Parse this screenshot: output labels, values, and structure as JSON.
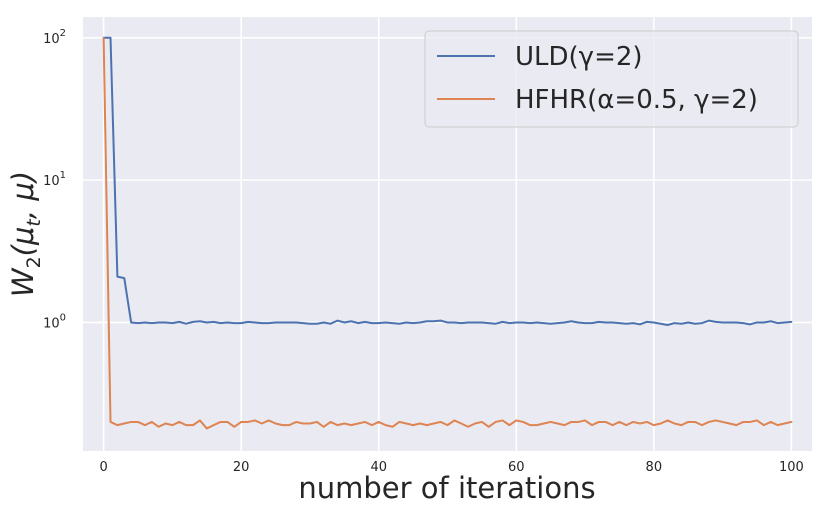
{
  "chart_data": {
    "type": "line",
    "xlabel": "number of iterations",
    "ylabel_main": "W",
    "ylabel_sub": "2",
    "ylabel_args": "(μ",
    "ylabel_args_sub": "t",
    "ylabel_tail": ", μ)",
    "yscale": "log",
    "xlim": [
      -3,
      103
    ],
    "ylim": [
      0.125,
      140
    ],
    "x_ticks": [
      0,
      20,
      40,
      60,
      80,
      100
    ],
    "x_tick_labels": [
      "0",
      "20",
      "40",
      "60",
      "80",
      "100"
    ],
    "y_ticks": [
      {
        "value": 100,
        "base": "10",
        "exp": "2"
      },
      {
        "value": 10,
        "base": "10",
        "exp": "1"
      },
      {
        "value": 1,
        "base": "10",
        "exp": "0"
      }
    ],
    "grid": true,
    "legend_position": "top-right",
    "series": [
      {
        "name": "ULD(γ=2)",
        "color": "#4c72b0",
        "x": [
          0,
          1,
          2,
          3,
          4,
          5,
          6,
          7,
          8,
          9,
          10,
          11,
          12,
          13,
          14,
          15,
          16,
          17,
          18,
          19,
          20,
          21,
          22,
          23,
          24,
          25,
          26,
          27,
          28,
          29,
          30,
          31,
          32,
          33,
          34,
          35,
          36,
          37,
          38,
          39,
          40,
          41,
          42,
          43,
          44,
          45,
          46,
          47,
          48,
          49,
          50,
          51,
          52,
          53,
          54,
          55,
          56,
          57,
          58,
          59,
          60,
          61,
          62,
          63,
          64,
          65,
          66,
          67,
          68,
          69,
          70,
          71,
          72,
          73,
          74,
          75,
          76,
          77,
          78,
          79,
          80,
          81,
          82,
          83,
          84,
          85,
          86,
          87,
          88,
          89,
          90,
          91,
          92,
          93,
          94,
          95,
          96,
          97,
          98,
          99,
          100
        ],
        "y": [
          100,
          100,
          2.1,
          2.05,
          1.0,
          0.99,
          1.0,
          0.99,
          1.0,
          1.0,
          0.99,
          1.01,
          0.98,
          1.01,
          1.02,
          1.0,
          1.01,
          0.99,
          1.0,
          0.99,
          0.99,
          1.01,
          1.0,
          0.99,
          0.99,
          1.0,
          1.0,
          1.0,
          1.0,
          0.99,
          0.98,
          0.98,
          1.0,
          0.98,
          1.03,
          1.0,
          1.02,
          0.99,
          1.01,
          0.99,
          0.99,
          1.0,
          0.99,
          0.98,
          1.0,
          0.99,
          1.0,
          1.02,
          1.02,
          1.03,
          1.0,
          1.0,
          0.99,
          1.0,
          1.0,
          1.0,
          0.99,
          0.98,
          1.01,
          0.99,
          1.0,
          1.0,
          0.99,
          1.0,
          0.99,
          0.98,
          0.99,
          1.0,
          1.02,
          1.0,
          0.99,
          0.99,
          1.01,
          1.0,
          1.0,
          0.99,
          0.98,
          0.99,
          0.97,
          1.01,
          1.0,
          0.98,
          0.96,
          0.99,
          0.98,
          1.0,
          0.98,
          0.99,
          1.03,
          1.01,
          1.0,
          1.0,
          1.0,
          0.99,
          0.97,
          1.0,
          1.0,
          1.02,
          0.99,
          1.0,
          1.01
        ]
      },
      {
        "name": "HFHR(α=0.5, γ=2)",
        "color": "#dd8452",
        "x": [
          0,
          1,
          2,
          3,
          4,
          5,
          6,
          7,
          8,
          9,
          10,
          11,
          12,
          13,
          14,
          15,
          16,
          17,
          18,
          19,
          20,
          21,
          22,
          23,
          24,
          25,
          26,
          27,
          28,
          29,
          30,
          31,
          32,
          33,
          34,
          35,
          36,
          37,
          38,
          39,
          40,
          41,
          42,
          43,
          44,
          45,
          46,
          47,
          48,
          49,
          50,
          51,
          52,
          53,
          54,
          55,
          56,
          57,
          58,
          59,
          60,
          61,
          62,
          63,
          64,
          65,
          66,
          67,
          68,
          69,
          70,
          71,
          72,
          73,
          74,
          75,
          76,
          77,
          78,
          79,
          80,
          81,
          82,
          83,
          84,
          85,
          86,
          87,
          88,
          89,
          90,
          91,
          92,
          93,
          94,
          95,
          96,
          97,
          98,
          99,
          100
        ],
        "y": [
          100,
          0.2,
          0.19,
          0.195,
          0.2,
          0.2,
          0.19,
          0.2,
          0.185,
          0.195,
          0.19,
          0.2,
          0.19,
          0.19,
          0.205,
          0.18,
          0.19,
          0.2,
          0.2,
          0.185,
          0.2,
          0.2,
          0.205,
          0.195,
          0.205,
          0.195,
          0.19,
          0.19,
          0.2,
          0.195,
          0.195,
          0.2,
          0.185,
          0.2,
          0.19,
          0.195,
          0.19,
          0.195,
          0.2,
          0.19,
          0.2,
          0.19,
          0.185,
          0.2,
          0.195,
          0.19,
          0.195,
          0.19,
          0.195,
          0.2,
          0.19,
          0.205,
          0.195,
          0.185,
          0.195,
          0.2,
          0.185,
          0.2,
          0.205,
          0.19,
          0.205,
          0.2,
          0.19,
          0.19,
          0.195,
          0.2,
          0.195,
          0.19,
          0.2,
          0.2,
          0.205,
          0.19,
          0.2,
          0.2,
          0.19,
          0.2,
          0.19,
          0.2,
          0.195,
          0.2,
          0.19,
          0.195,
          0.205,
          0.195,
          0.19,
          0.2,
          0.2,
          0.19,
          0.2,
          0.205,
          0.2,
          0.195,
          0.19,
          0.2,
          0.2,
          0.205,
          0.19,
          0.2,
          0.19,
          0.195,
          0.2
        ]
      }
    ]
  }
}
